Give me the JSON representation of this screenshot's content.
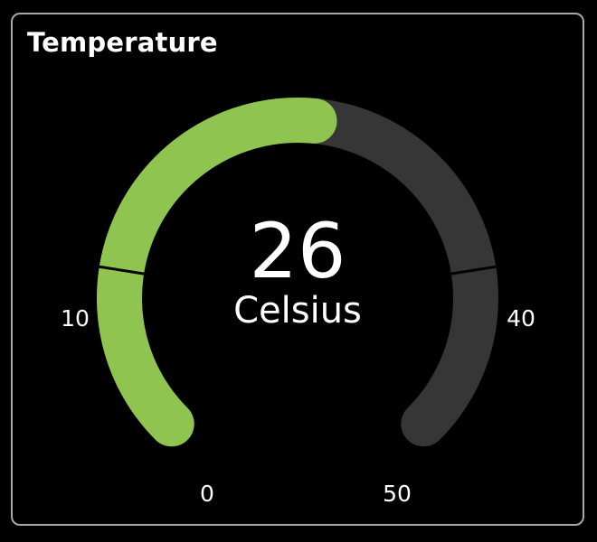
{
  "widget": {
    "title": "Temperature",
    "value": "26",
    "unit": "Celsius",
    "gauge_value": 26,
    "gauge_min": 0,
    "gauge_max": 50,
    "tick_labels": [
      "0",
      "10",
      "40",
      "50"
    ],
    "colors": {
      "fill": "#8ec44f",
      "track": "#363636",
      "background": "#000000",
      "border": "#a8a8a8",
      "text": "#ffffff"
    }
  }
}
